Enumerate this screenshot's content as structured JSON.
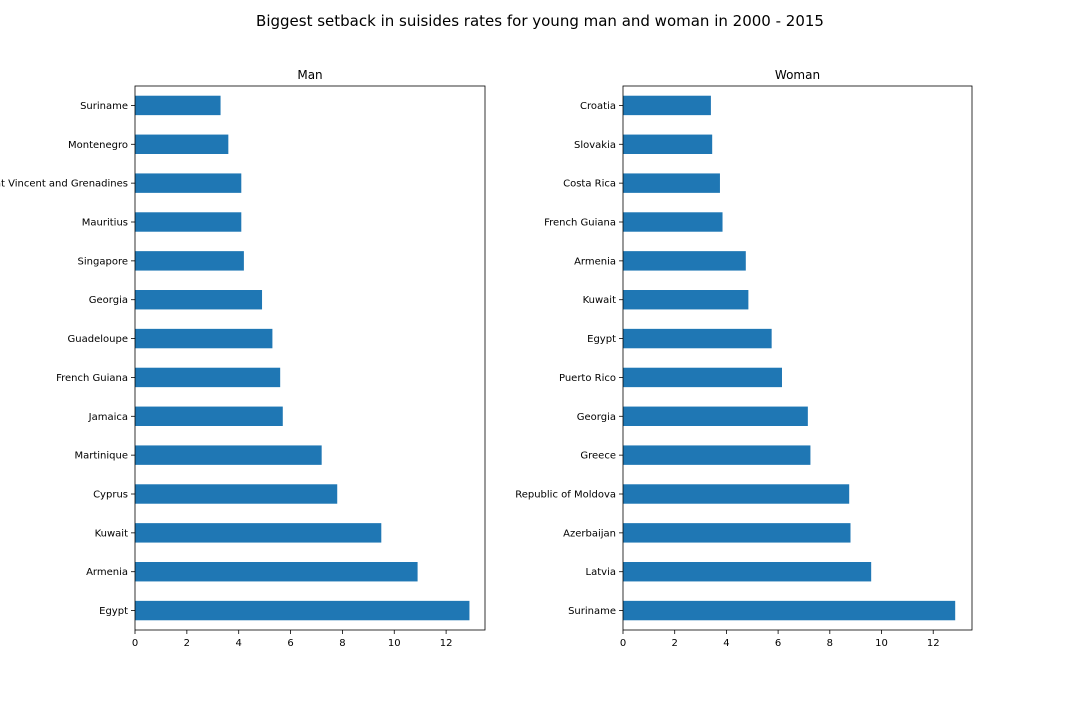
{
  "suptitle": "Biggest setback in suisides rates for young man and woman in 2000 - 2015",
  "bar_color": "#1f77b4",
  "chart_data": [
    {
      "type": "bar",
      "orientation": "horizontal",
      "title": "Man",
      "xlabel": "",
      "ylabel": "",
      "categories": [
        "Suriname",
        "Montenegro",
        "Saint Vincent and Grenadines",
        "Mauritius",
        "Singapore",
        "Georgia",
        "Guadeloupe",
        "French Guiana",
        "Jamaica",
        "Martinique",
        "Cyprus",
        "Kuwait",
        "Armenia",
        "Egypt"
      ],
      "values": [
        3.3,
        3.6,
        4.1,
        4.1,
        4.2,
        4.9,
        5.3,
        5.6,
        5.7,
        7.2,
        7.8,
        9.5,
        10.9,
        12.9
      ],
      "xlim": [
        0,
        13.5
      ],
      "xticks": [
        0,
        2,
        4,
        6,
        8,
        10,
        12
      ],
      "grid": false
    },
    {
      "type": "bar",
      "orientation": "horizontal",
      "title": "Woman",
      "xlabel": "",
      "ylabel": "",
      "categories": [
        "Croatia",
        "Slovakia",
        "Costa Rica",
        "French Guiana",
        "Armenia",
        "Kuwait",
        "Egypt",
        "Puerto Rico",
        "Georgia",
        "Greece",
        "Republic of Moldova",
        "Azerbaijan",
        "Latvia",
        "Suriname"
      ],
      "values": [
        3.4,
        3.45,
        3.75,
        3.85,
        4.75,
        4.85,
        5.75,
        6.15,
        7.15,
        7.25,
        8.75,
        8.8,
        9.6,
        12.85
      ],
      "xlim": [
        0,
        13.5
      ],
      "xticks": [
        0,
        2,
        4,
        6,
        8,
        10,
        12
      ],
      "grid": false
    }
  ]
}
